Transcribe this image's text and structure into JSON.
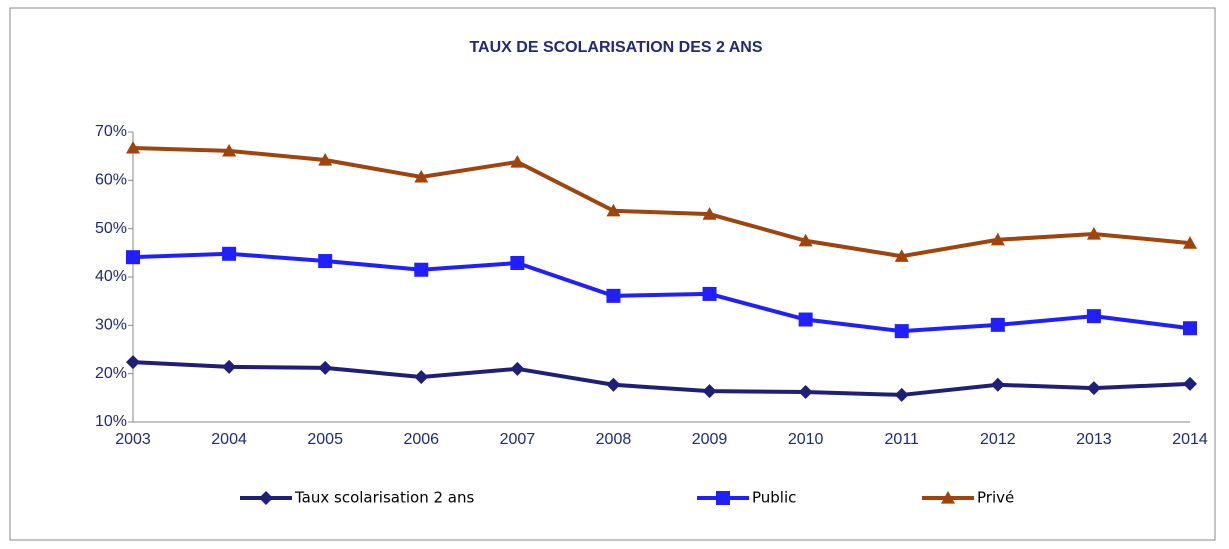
{
  "chart_data": {
    "type": "line",
    "title": "TAUX DE SCOLARISATION DES 2 ANS",
    "categories": [
      "2003",
      "2004",
      "2005",
      "2006",
      "2007",
      "2008",
      "2009",
      "2010",
      "2011",
      "2012",
      "2013",
      "2014"
    ],
    "series": [
      {
        "name": "Taux scolarisation 2 ans",
        "color": "#1f1f78",
        "marker": "diamond",
        "values": [
          22.4,
          21.4,
          21.2,
          19.3,
          21.0,
          17.7,
          16.4,
          16.2,
          15.6,
          17.7,
          17.0,
          17.9
        ]
      },
      {
        "name": "Public",
        "color": "#1f1fff",
        "marker": "square",
        "values": [
          44.1,
          44.8,
          43.3,
          41.5,
          42.9,
          36.1,
          36.5,
          31.2,
          28.8,
          30.1,
          31.9,
          29.4
        ]
      },
      {
        "name": "Privé",
        "color": "#a0440e",
        "marker": "triangle",
        "values": [
          66.7,
          66.1,
          64.2,
          60.7,
          63.8,
          53.7,
          53.0,
          47.5,
          44.3,
          47.7,
          48.9,
          47.0
        ]
      }
    ],
    "ylim": [
      10,
      70
    ],
    "yticks": [
      {
        "value": 10,
        "label": "10%"
      },
      {
        "value": 20,
        "label": "20%"
      },
      {
        "value": 30,
        "label": "30%"
      },
      {
        "value": 40,
        "label": "40%"
      },
      {
        "value": 50,
        "label": "50%"
      },
      {
        "value": 60,
        "label": "60%"
      },
      {
        "value": 70,
        "label": "70%"
      }
    ],
    "grid": false,
    "legend": "bottom"
  }
}
